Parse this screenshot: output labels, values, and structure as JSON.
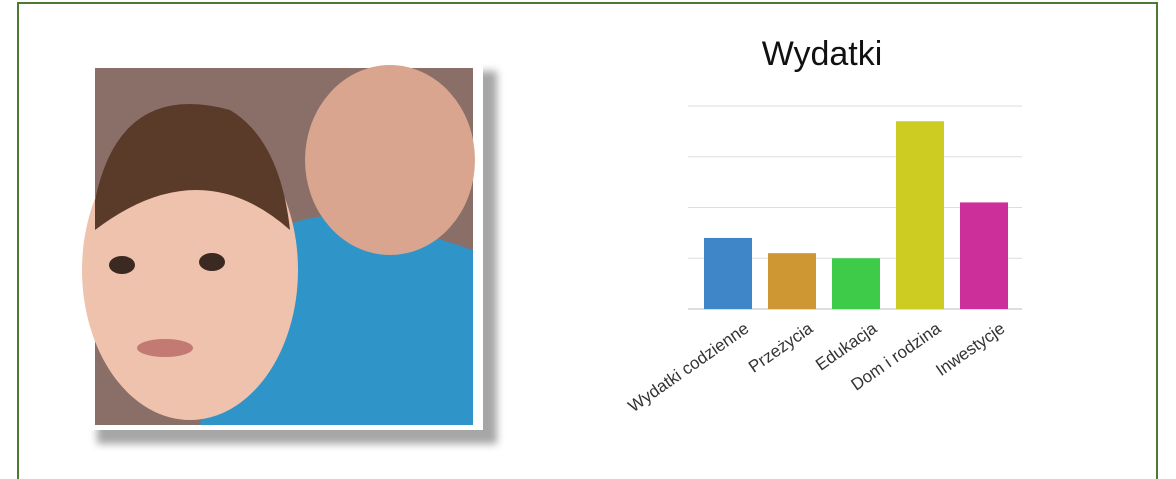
{
  "chart_data": {
    "type": "bar",
    "title": "Wydatki",
    "categories": [
      "Wydatki codzienne",
      "Przeżycia",
      "Edukacja",
      "Dom i rodzina",
      "Inwestycje"
    ],
    "values": [
      1.4,
      1.1,
      1.0,
      3.7,
      2.1
    ],
    "colors": [
      "#3f86c9",
      "#cf9634",
      "#3ecb4a",
      "#cccc22",
      "#cc2f99"
    ],
    "ylim": [
      0,
      4
    ],
    "yticks": [
      0,
      1,
      2,
      3,
      4
    ],
    "grid": true
  }
}
